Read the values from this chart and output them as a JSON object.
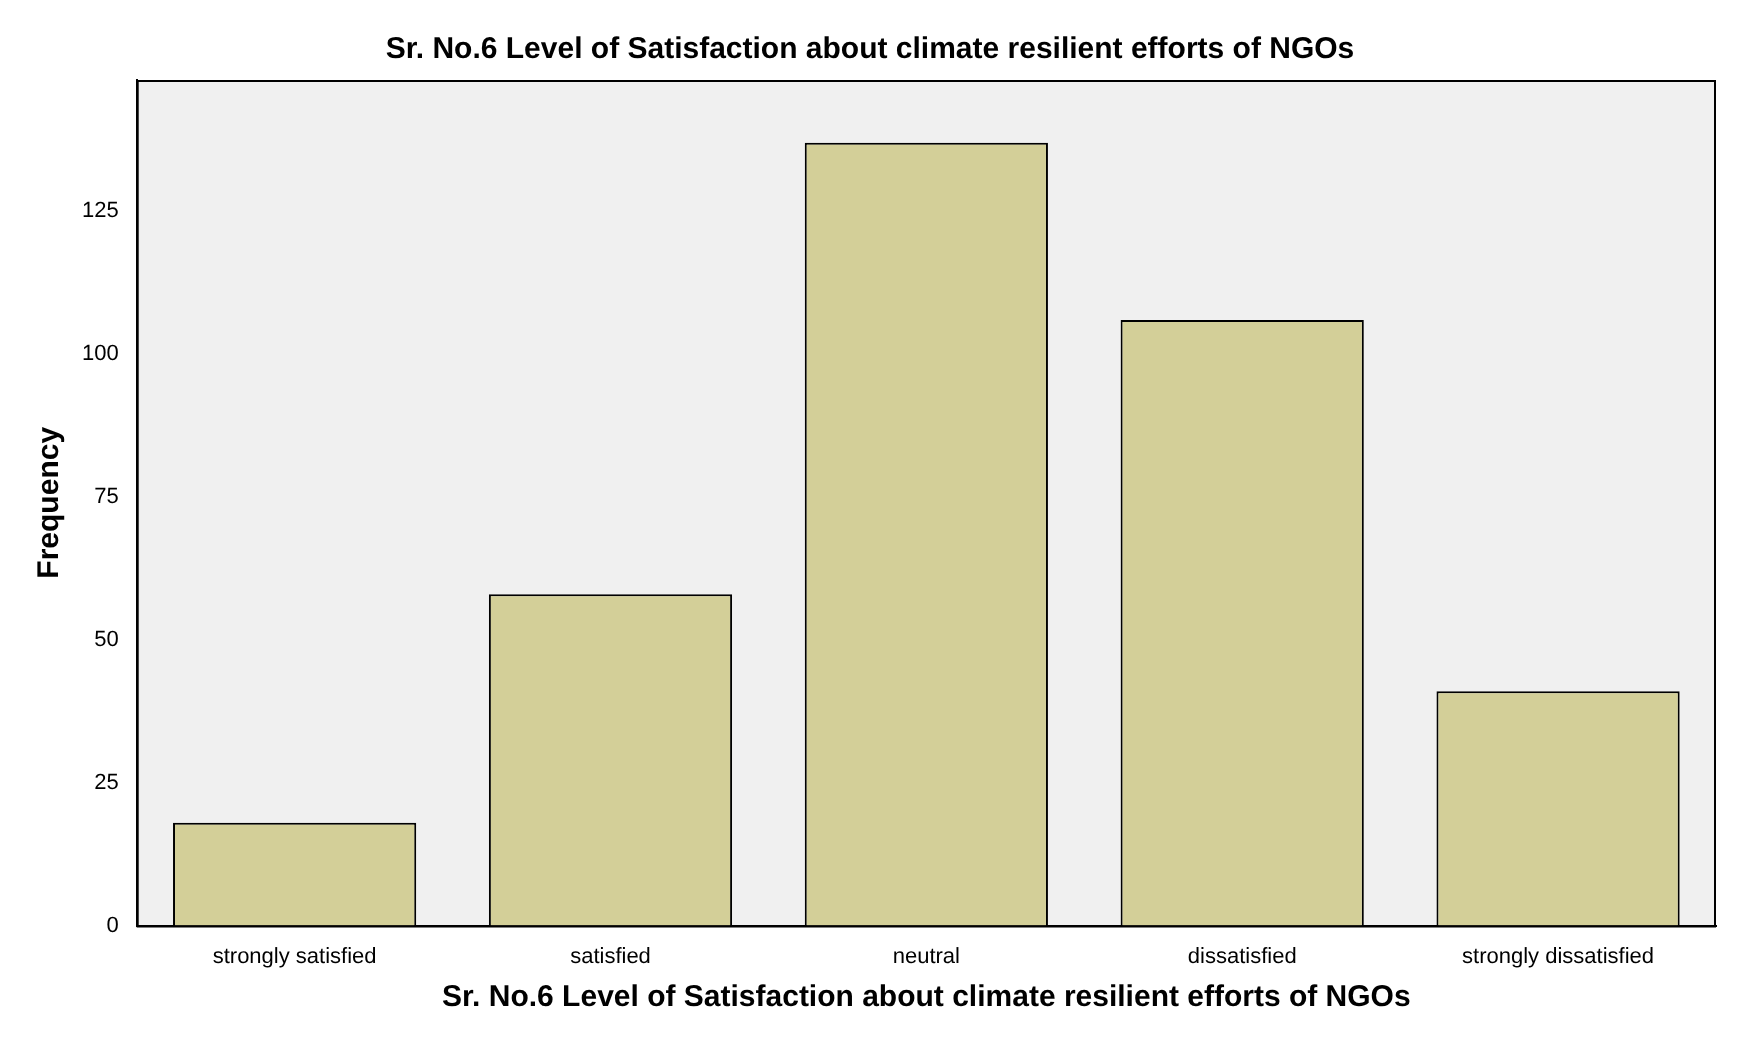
{
  "chart_data": {
    "type": "bar",
    "title": "Sr. No.6 Level of Satisfaction about climate resilient efforts of NGOs",
    "xlabel": "Sr. No.6 Level of Satisfaction about climate resilient efforts of NGOs",
    "ylabel": "Frequency",
    "categories": [
      "strongly satisfied",
      "satisfied",
      "neutral",
      "dissatisfied",
      "strongly dissatisfied"
    ],
    "values": [
      18,
      58,
      137,
      106,
      41
    ],
    "color": "#d3cf98",
    "ylim": [
      0,
      148
    ],
    "yticks": [
      0,
      25,
      50,
      75,
      100,
      125
    ],
    "grid": false,
    "legend": false
  }
}
